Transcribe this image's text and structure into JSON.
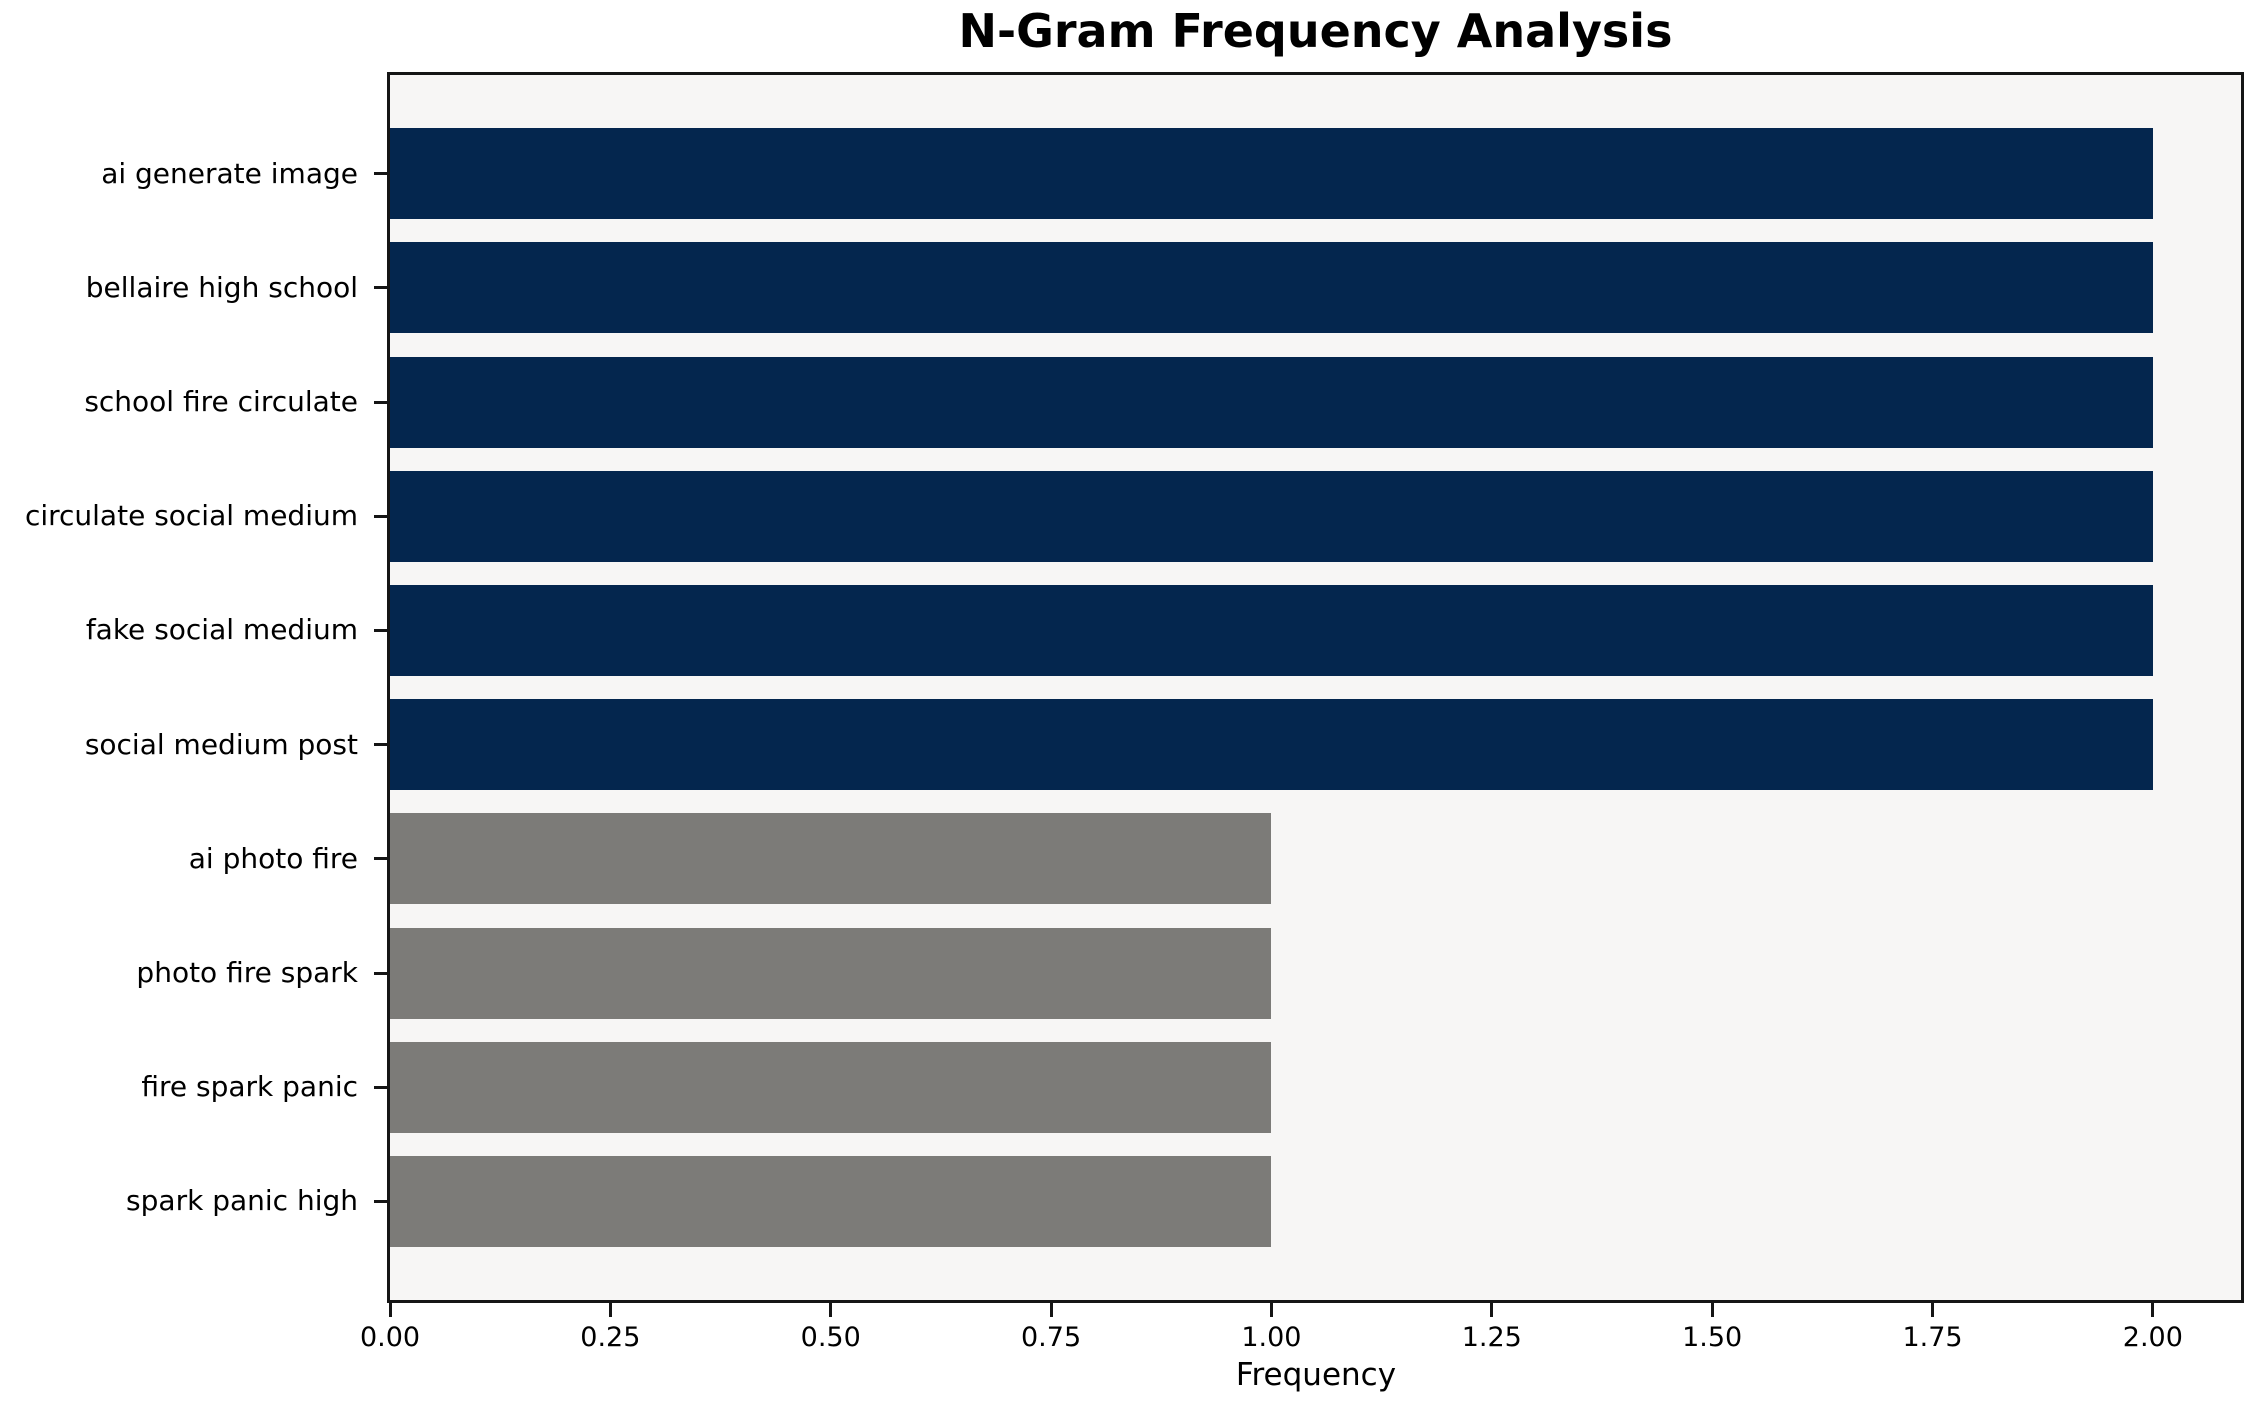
{
  "chart_data": {
    "type": "bar",
    "orientation": "horizontal",
    "title": "N-Gram Frequency Analysis",
    "xlabel": "Frequency",
    "ylabel": "",
    "categories": [
      "ai generate image",
      "bellaire high school",
      "school fire circulate",
      "circulate social medium",
      "fake social medium",
      "social medium post",
      "ai photo fire",
      "photo fire spark",
      "fire spark panic",
      "spark panic high"
    ],
    "values": [
      2,
      2,
      2,
      2,
      2,
      2,
      1,
      1,
      1,
      1
    ],
    "bar_colors": [
      "#04264e",
      "#04264e",
      "#04264e",
      "#04264e",
      "#04264e",
      "#04264e",
      "#7c7b78",
      "#7c7b78",
      "#7c7b78",
      "#7c7b78"
    ],
    "xlim": [
      0,
      2.1
    ],
    "xtick_values": [
      0,
      0.25,
      0.5,
      0.75,
      1.0,
      1.25,
      1.5,
      1.75,
      2.0
    ],
    "xtick_labels": [
      "0.00",
      "0.25",
      "0.50",
      "0.75",
      "1.00",
      "1.25",
      "1.50",
      "1.75",
      "2.00"
    ],
    "grid": false,
    "legend": null,
    "plot_background": "#f7f6f5",
    "colors": {
      "frequency_2_bar": "#04264e",
      "frequency_1_bar": "#7c7b78",
      "spine": "#151515",
      "figure_background": "#ffffff"
    }
  }
}
